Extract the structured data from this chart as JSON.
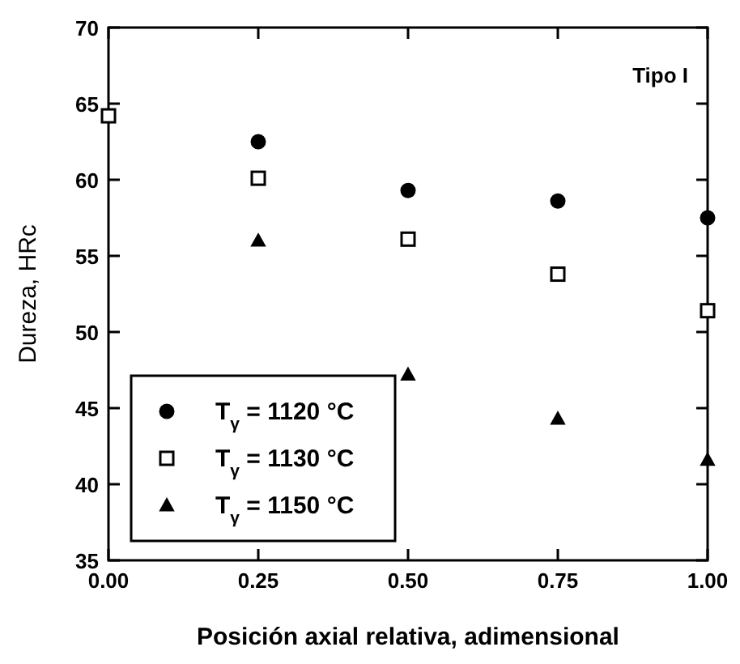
{
  "chart_data": {
    "type": "scatter",
    "xlabel": "Posición axial relativa, adimensional",
    "ylabel": "Dureza, HRc",
    "annotations": [
      "Tipo I"
    ],
    "xlim": [
      0,
      1
    ],
    "ylim": [
      35,
      70
    ],
    "xticks": [
      {
        "value": 0,
        "label": "0.00"
      },
      {
        "value": 0.25,
        "label": "0.25"
      },
      {
        "value": 0.5,
        "label": "0.50"
      },
      {
        "value": 0.75,
        "label": "0.75"
      },
      {
        "value": 1,
        "label": "1.00"
      }
    ],
    "yticks": [
      35,
      40,
      45,
      50,
      55,
      60,
      65,
      70
    ],
    "legend": "bottom left",
    "grid": false,
    "series": [
      {
        "name": "T$_{γ}$ = 1120 °C",
        "color": "#000000",
        "marker": "circle",
        "x": [
          0.25,
          0.5,
          0.75,
          1
        ],
        "values": [
          62.5,
          59.3,
          58.6,
          57.5
        ]
      },
      {
        "name": "T$_{γ}$ = 1130 °C",
        "color": "#000000",
        "marker": "square",
        "x": [
          0.25,
          0.5,
          0.75,
          1
        ],
        "values": [
          60.1,
          56.1,
          53.8,
          51.4
        ]
      },
      {
        "name": "T$_{γ}$ = 1150 °C",
        "color": "#000000",
        "marker": "triangle",
        "x": [
          0.25,
          0.5,
          0.75,
          1
        ],
        "values": [
          56.0,
          47.2,
          44.3,
          41.6
        ]
      },
      {
        "color": "#000000",
        "marker": "square",
        "x": [
          0
        ],
        "values": [
          64.2
        ]
      }
    ]
  }
}
